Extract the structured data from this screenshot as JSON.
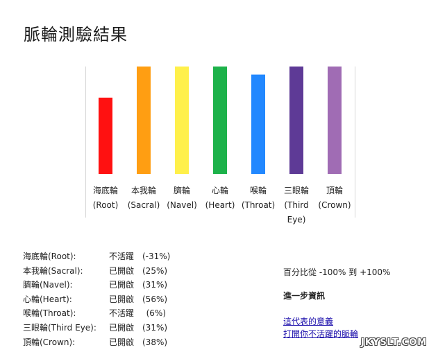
{
  "page": {
    "title": "脈輪測驗結果"
  },
  "chart_data": {
    "type": "bar",
    "categories": [
      "海底輪 (Root)",
      "本我輪 (Sacral)",
      "臍輪 (Navel)",
      "心輪 (Heart)",
      "喉輪 (Throat)",
      "三眼輪 (Third Eye)",
      "頂輪 (Crown)"
    ],
    "category_lines": [
      [
        "海底輪",
        "(Root)"
      ],
      [
        "本我輪",
        "(Sacral)"
      ],
      [
        "臍輪",
        "(Navel)"
      ],
      [
        "心輪",
        "(Heart)"
      ],
      [
        "喉輪",
        "(Throat)"
      ],
      [
        "三眼輪",
        "(Third",
        "Eye)"
      ],
      [
        "頂輪",
        "(Crown)"
      ]
    ],
    "values": [
      -31,
      25,
      31,
      56,
      6,
      31,
      38
    ],
    "ylim": [
      -100,
      100
    ],
    "colors": [
      "#ff1111",
      "#ff9e12",
      "#fff04a",
      "#1db24a",
      "#2288ff",
      "#5e3a96",
      "#a06cb4"
    ],
    "grid": false,
    "legend": "none"
  },
  "results": [
    {
      "name": "海底輪(Root):",
      "status": "不活躍",
      "pct": "(-31%)"
    },
    {
      "name": "本我輪(Sacral):",
      "status": "已開啟",
      "pct": "(25%)"
    },
    {
      "name": "臍輪(Navel):",
      "status": "已開啟",
      "pct": "(31%)"
    },
    {
      "name": "心輪(Heart):",
      "status": "已開啟",
      "pct": "(56%)"
    },
    {
      "name": "喉輪(Throat):",
      "status": "不活躍",
      "pct": "(6%)"
    },
    {
      "name": "三眼輪(Third Eye):",
      "status": "已開啟",
      "pct": "(31%)"
    },
    {
      "name": "頂輪(Crown):",
      "status": "已開啟",
      "pct": "(38%)"
    }
  ],
  "info": {
    "range_text": "百分比從 -100% 到 +100%",
    "more_title": "進一步資訊",
    "link_meaning": "這代表的意義",
    "link_open": "打開你不活躍的脈輪"
  },
  "watermark": "JKYSLT.COM"
}
